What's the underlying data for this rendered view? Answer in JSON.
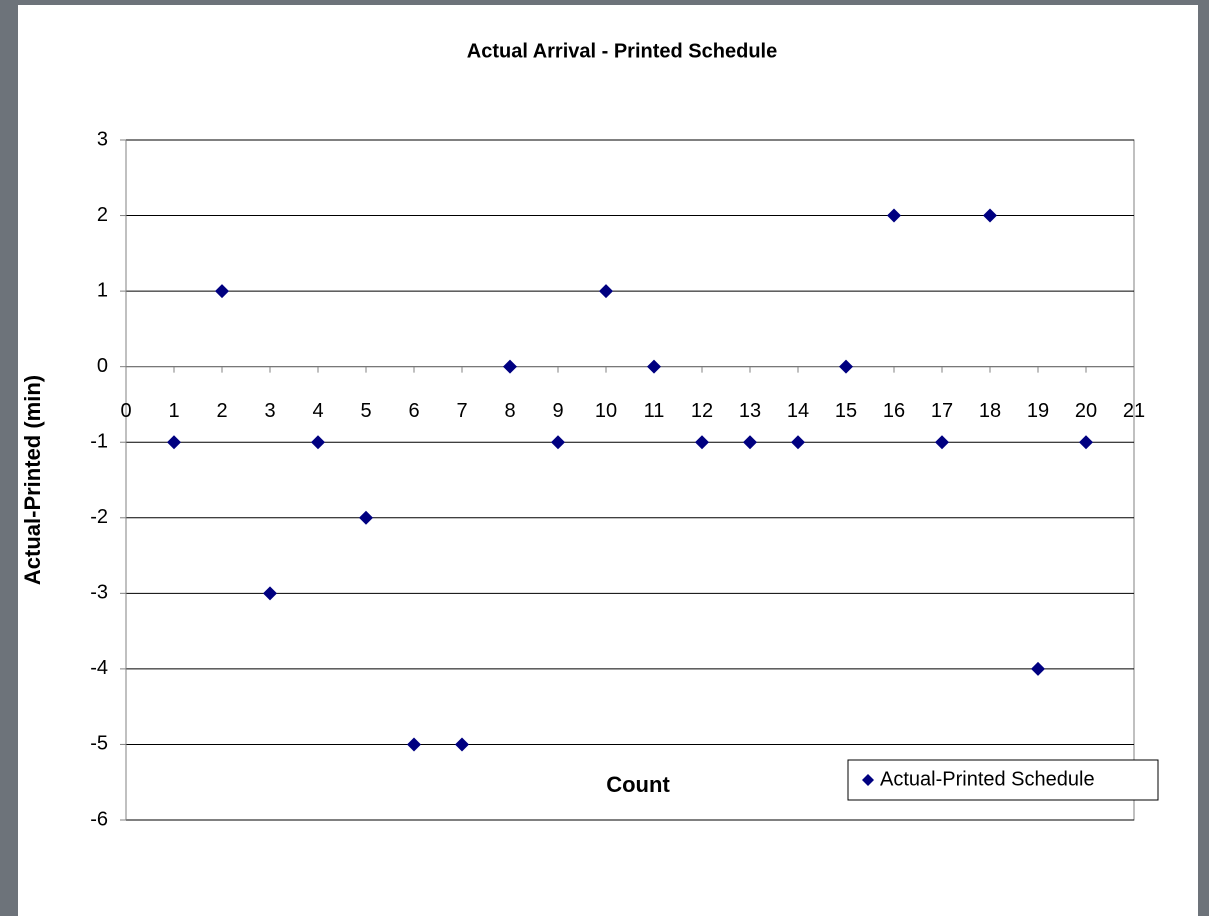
{
  "chart_data": {
    "type": "scatter",
    "title": "Actual Arrival - Printed Schedule",
    "x_label": "Count",
    "y_label": "Actual-Printed (min)",
    "x": [
      1,
      2,
      3,
      4,
      5,
      6,
      7,
      8,
      9,
      10,
      11,
      12,
      13,
      14,
      15,
      16,
      17,
      18,
      19,
      20
    ],
    "series": [
      {
        "name": "Actual-Printed Schedule",
        "color": "#000080",
        "values": [
          -1,
          1,
          -3,
          -1,
          -2,
          -5,
          -5,
          0,
          -1,
          1,
          0,
          -1,
          -1,
          -1,
          0,
          2,
          -1,
          2,
          -4,
          -1
        ]
      }
    ],
    "xlim": [
      0,
      21
    ],
    "xticks": [
      0,
      1,
      2,
      3,
      4,
      5,
      6,
      7,
      8,
      9,
      10,
      11,
      12,
      13,
      14,
      15,
      16,
      17,
      18,
      19,
      20,
      21
    ],
    "ylim": [
      -6,
      3
    ],
    "yticks": [
      -6,
      -5,
      -4,
      -3,
      -2,
      -1,
      0,
      1,
      2,
      3
    ],
    "grid": true,
    "legend": "bottom-right"
  }
}
